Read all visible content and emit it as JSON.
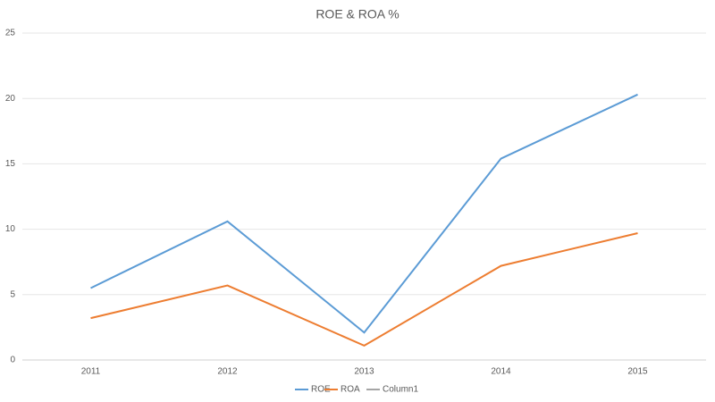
{
  "chart_data": {
    "type": "line",
    "title": "ROE & ROA %",
    "categories": [
      "2011",
      "2012",
      "2013",
      "2014",
      "2015"
    ],
    "series": [
      {
        "name": "ROE",
        "color": "#5b9bd5",
        "values": [
          5.5,
          10.6,
          2.1,
          15.4,
          20.3
        ]
      },
      {
        "name": "ROA",
        "color": "#ed7d31",
        "values": [
          3.2,
          5.7,
          1.1,
          7.2,
          9.7
        ]
      },
      {
        "name": "Column1",
        "color": "#a5a5a5",
        "values": [
          null,
          null,
          null,
          null,
          null
        ]
      }
    ],
    "ylim": [
      0,
      25
    ],
    "yticks": [
      0,
      5,
      10,
      15,
      20,
      25
    ],
    "grid": true,
    "legend": "bottom"
  }
}
